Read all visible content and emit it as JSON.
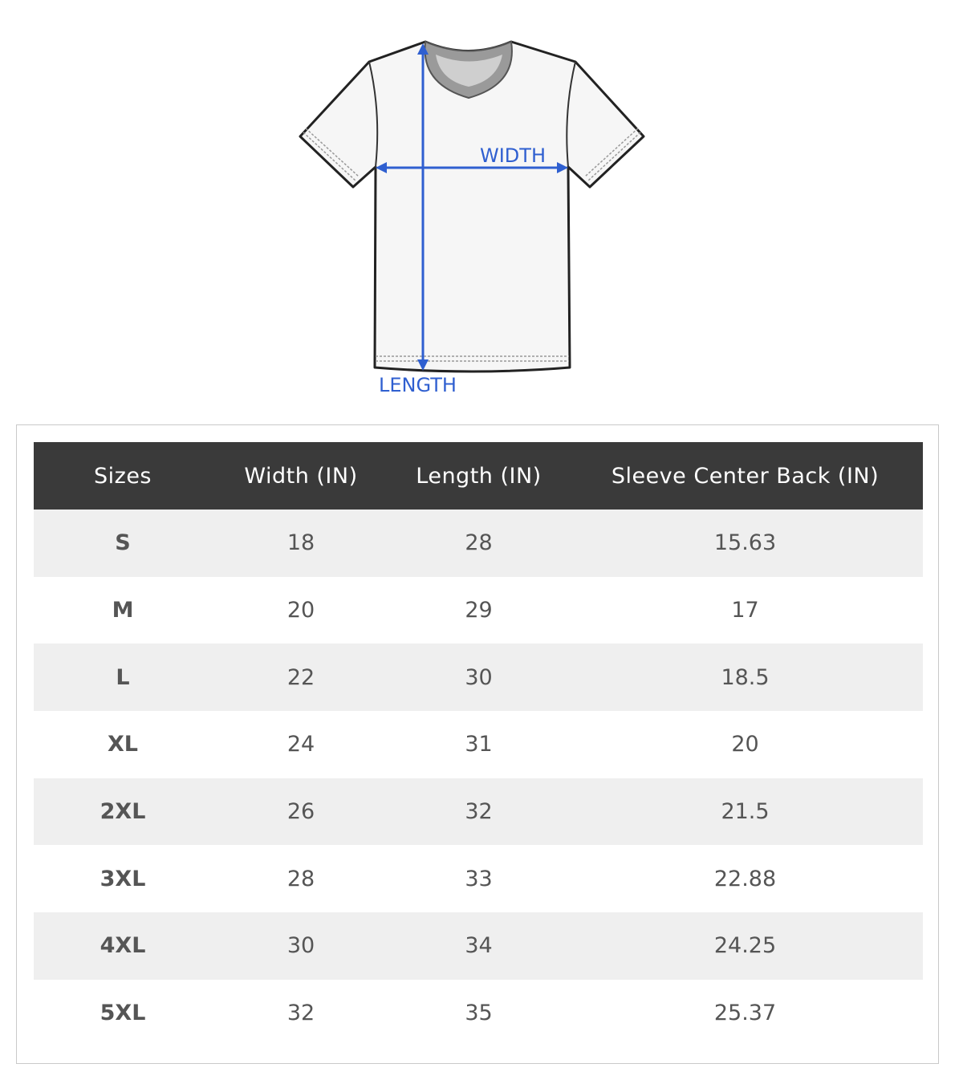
{
  "diagram": {
    "width_label": "WIDTH",
    "length_label": "LENGTH",
    "arrow_color": "#2f5fd0"
  },
  "table": {
    "headers": [
      "Sizes",
      "Width (IN)",
      "Length (IN)",
      "Sleeve Center Back (IN)"
    ],
    "rows": [
      [
        "S",
        "18",
        "28",
        "15.63"
      ],
      [
        "M",
        "20",
        "29",
        "17"
      ],
      [
        "L",
        "22",
        "30",
        "18.5"
      ],
      [
        "XL",
        "24",
        "31",
        "20"
      ],
      [
        "2XL",
        "26",
        "32",
        "21.5"
      ],
      [
        "3XL",
        "28",
        "33",
        "22.88"
      ],
      [
        "4XL",
        "30",
        "34",
        "24.25"
      ],
      [
        "5XL",
        "32",
        "35",
        "25.37"
      ]
    ],
    "header_color": "#3a3a3a",
    "stripe_color": "#efefef"
  }
}
